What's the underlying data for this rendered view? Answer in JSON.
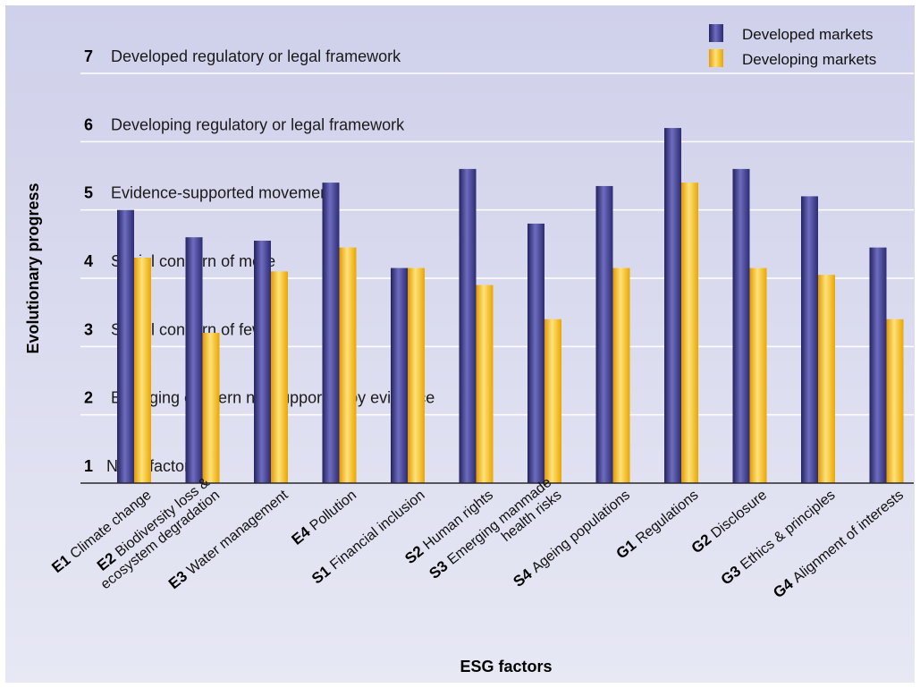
{
  "chart_data": {
    "type": "bar",
    "title": "",
    "xlabel": "ESG factors",
    "ylabel": "Evolutionary progress",
    "ylim": [
      1,
      7
    ],
    "levels": [
      {
        "value": 1,
        "number": "1",
        "label": "Not a factor"
      },
      {
        "value": 2,
        "number": "2",
        "label": "Emerging concern not supported by evidence"
      },
      {
        "value": 3,
        "number": "3",
        "label": "Social concern of few"
      },
      {
        "value": 4,
        "number": "4",
        "label": "Social concern of more"
      },
      {
        "value": 5,
        "number": "5",
        "label": "Evidence-supported movement"
      },
      {
        "value": 6,
        "number": "6",
        "label": "Developing regulatory or legal framework"
      },
      {
        "value": 7,
        "number": "7",
        "label": "Developed regulatory or legal framework"
      }
    ],
    "categories": [
      {
        "code": "E1",
        "lines": [
          "Climate change"
        ]
      },
      {
        "code": "E2",
        "lines": [
          "Biodiversity loss &",
          "ecosystem degradation"
        ]
      },
      {
        "code": "E3",
        "lines": [
          "Water management"
        ]
      },
      {
        "code": "E4",
        "lines": [
          "Pollution"
        ]
      },
      {
        "code": "S1",
        "lines": [
          "Financial inclusion"
        ]
      },
      {
        "code": "S2",
        "lines": [
          "Human rights"
        ]
      },
      {
        "code": "S3",
        "lines": [
          "Emerging manmade",
          "health risks"
        ]
      },
      {
        "code": "S4",
        "lines": [
          "Ageing populations"
        ]
      },
      {
        "code": "G1",
        "lines": [
          "Regulations"
        ]
      },
      {
        "code": "G2",
        "lines": [
          "Disclosure"
        ]
      },
      {
        "code": "G3",
        "lines": [
          "Ethics & principles"
        ]
      },
      {
        "code": "G4",
        "lines": [
          "Alignment of interests"
        ]
      }
    ],
    "series": [
      {
        "name": "Developed markets",
        "color": "#3b3a8c",
        "values": [
          5.0,
          4.6,
          4.55,
          5.4,
          4.15,
          5.6,
          4.8,
          5.35,
          6.2,
          5.6,
          5.2,
          4.45
        ]
      },
      {
        "name": "Developing markets",
        "color": "#f5b800",
        "values": [
          4.3,
          3.2,
          4.1,
          4.45,
          4.15,
          3.9,
          3.4,
          4.15,
          5.4,
          4.15,
          4.05,
          3.4
        ]
      }
    ],
    "grid": true,
    "legend": "top-right"
  }
}
